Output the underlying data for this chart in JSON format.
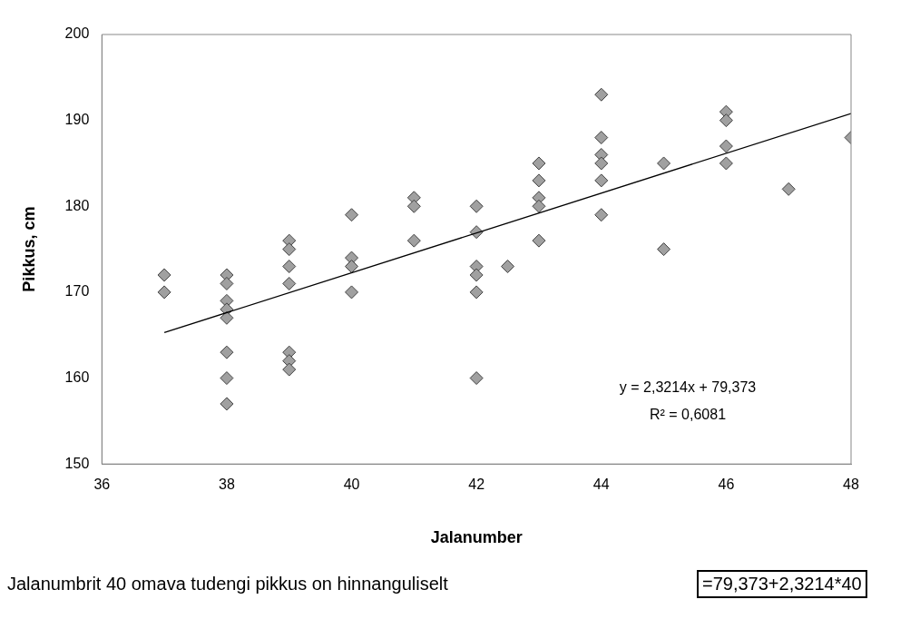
{
  "chart_data": {
    "type": "scatter",
    "xlabel": "Jalanumber",
    "ylabel": "Pikkus, cm",
    "xlim": [
      36,
      48
    ],
    "xticks": [
      36,
      38,
      40,
      42,
      44,
      46,
      48
    ],
    "ylim": [
      150,
      200
    ],
    "yticks": [
      150,
      160,
      170,
      180,
      190,
      200
    ],
    "marker": "diamond",
    "grid": false,
    "legend": false,
    "series": [
      {
        "color": "#a0a0a0",
        "x": [
          37,
          37,
          38,
          38,
          38,
          38,
          38,
          38,
          38,
          38,
          39,
          39,
          39,
          39,
          39,
          39,
          39,
          40,
          40,
          40,
          40,
          41,
          41,
          41,
          42,
          42,
          42,
          42,
          42,
          42,
          42.5,
          43,
          43,
          43,
          43,
          43,
          44,
          44,
          44,
          44,
          44,
          44,
          45,
          45,
          46,
          46,
          46,
          46,
          47,
          48
        ],
        "values": [
          172,
          170,
          172,
          171,
          169,
          168,
          167,
          163,
          160,
          157,
          176,
          175,
          173,
          171,
          163,
          162,
          161,
          179,
          174,
          173,
          170,
          181,
          180,
          176,
          180,
          177,
          173,
          172,
          170,
          160,
          173,
          185,
          183,
          181,
          180,
          176,
          193,
          188,
          186,
          185,
          183,
          179,
          185,
          175,
          191,
          190,
          187,
          185,
          182,
          188
        ]
      },
      {
        "type": "line",
        "color": "#000000",
        "marker": "none",
        "line_style": "solid",
        "x": [
          37,
          48
        ],
        "values": [
          165.3,
          190.8
        ]
      }
    ],
    "annotations": [
      "y = 2,3214x + 79,373",
      "R² = 0,6081",
      "Jalanumbrit 40 omava tudengi pikkus on hinnanguliselt",
      "=79,373+2,3214*40"
    ]
  }
}
